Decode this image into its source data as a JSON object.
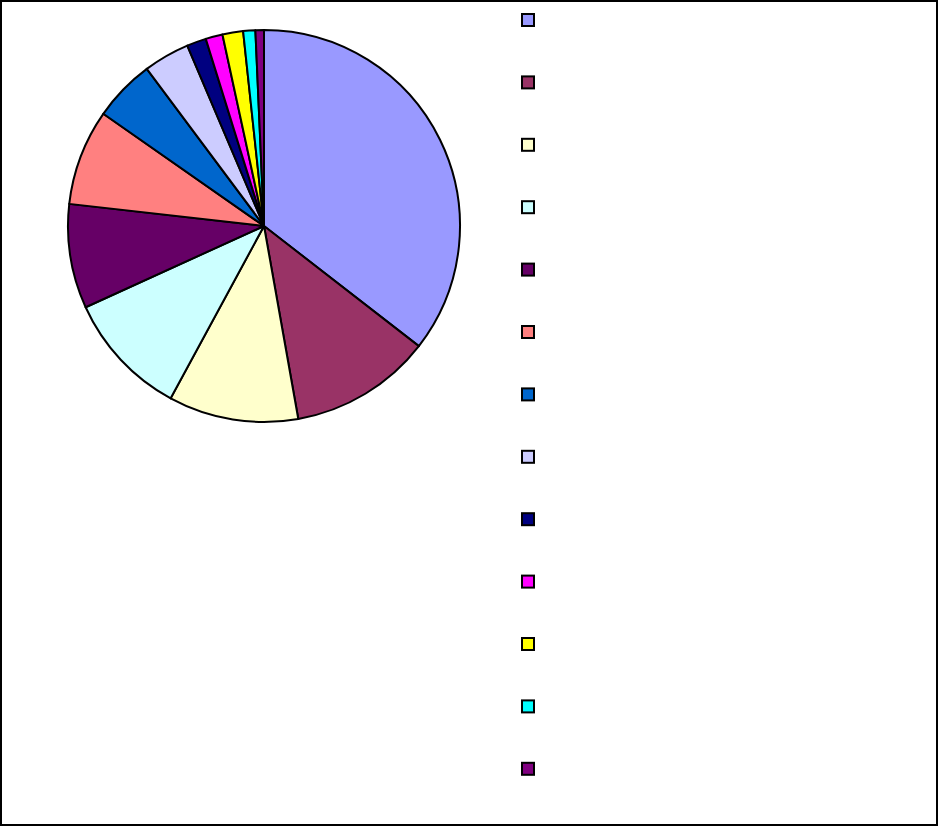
{
  "chart_data": {
    "type": "pie",
    "categories": [
      null,
      null,
      null,
      null,
      null,
      null,
      null,
      null,
      null,
      null,
      null,
      null,
      null
    ],
    "values": [
      35.5,
      11.7,
      10.7,
      10.3,
      8.6,
      7.9,
      5.1,
      3.8,
      1.6,
      1.4,
      1.7,
      1.0,
      0.7
    ],
    "colors": [
      "#9999ff",
      "#993366",
      "#ffffcc",
      "#ccffff",
      "#660066",
      "#ff8080",
      "#0066cc",
      "#ccccff",
      "#000080",
      "#ff00ff",
      "#ffff00",
      "#00ffff",
      "#800080"
    ]
  }
}
